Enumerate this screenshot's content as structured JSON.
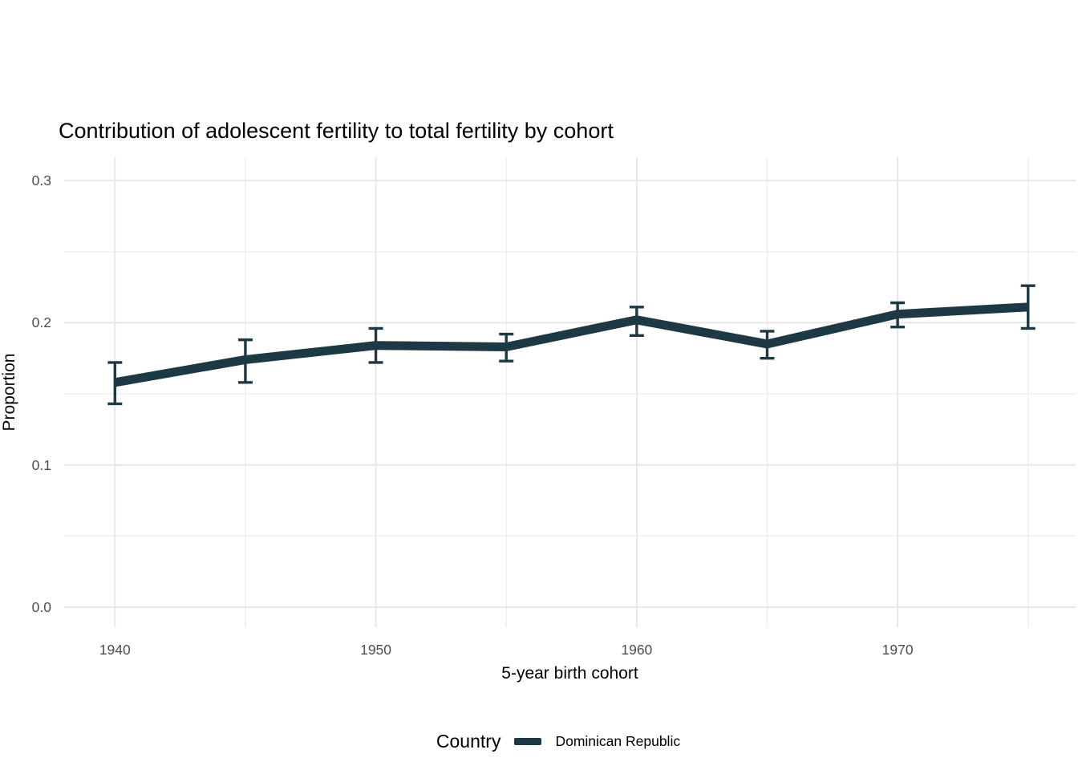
{
  "chart_data": {
    "type": "line",
    "title": "Contribution of adolescent fertility to total fertility by cohort",
    "xlabel": "5-year birth cohort",
    "ylabel": "Proportion",
    "x": [
      1940,
      1945,
      1950,
      1955,
      1960,
      1965,
      1970,
      1975
    ],
    "series": [
      {
        "name": "Dominican Republic",
        "values": [
          0.158,
          0.174,
          0.184,
          0.183,
          0.202,
          0.185,
          0.206,
          0.211
        ],
        "ci_low": [
          0.143,
          0.158,
          0.172,
          0.173,
          0.191,
          0.175,
          0.197,
          0.196
        ],
        "ci_high": [
          0.172,
          0.188,
          0.196,
          0.192,
          0.211,
          0.194,
          0.214,
          0.226
        ]
      }
    ],
    "xlim": [
      1940,
      1975
    ],
    "ylim": [
      0.0,
      0.3
    ],
    "x_ticks": [
      {
        "value": 1940,
        "label": "1940"
      },
      {
        "value": 1950,
        "label": "1950"
      },
      {
        "value": 1960,
        "label": "1960"
      },
      {
        "value": 1970,
        "label": "1970"
      }
    ],
    "x_minor_ticks": [
      1945,
      1955,
      1965,
      1975
    ],
    "y_ticks": [
      {
        "value": 0.0,
        "label": "0.0"
      },
      {
        "value": 0.1,
        "label": "0.1"
      },
      {
        "value": 0.2,
        "label": "0.2"
      },
      {
        "value": 0.3,
        "label": "0.3"
      }
    ],
    "y_minor_ticks": [
      0.05,
      0.15,
      0.25
    ],
    "grid": true,
    "legend_position": "bottom"
  },
  "legend": {
    "title": "Country",
    "entries": [
      {
        "label": "Dominican Republic",
        "color": "#1d3944"
      }
    ]
  },
  "colors": {
    "line": "#1d3944",
    "grid_major": "#e5e5e5",
    "grid_minor": "#eeeeee",
    "tick_label": "#4d4d4d",
    "text": "#000000",
    "background": "#ffffff"
  }
}
